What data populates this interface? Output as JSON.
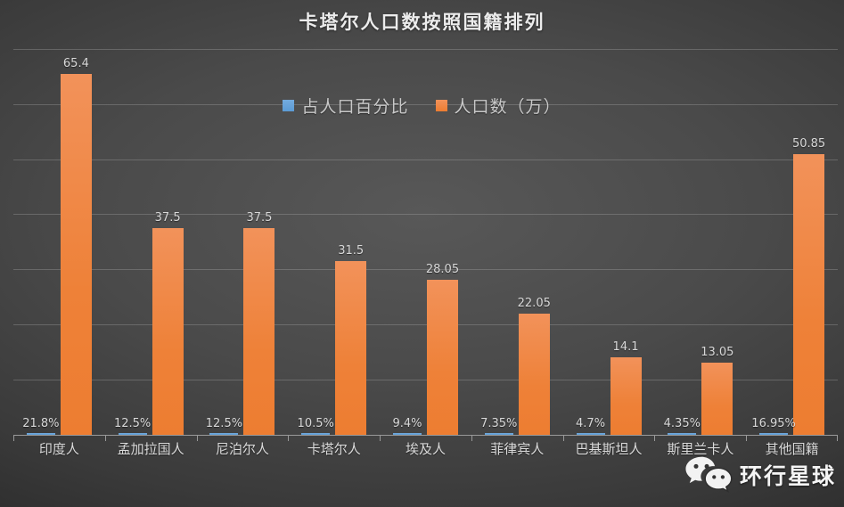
{
  "title": "卡塔尔人口数按照国籍排列",
  "legend": [
    {
      "label": "占人口百分比",
      "color_top": "#74abde",
      "color_bottom": "#5b9bd5"
    },
    {
      "label": "人口数（万）",
      "color_top": "#f2925a",
      "color_bottom": "#ed7d31"
    }
  ],
  "watermark": {
    "icon": "wechat-icon",
    "text": "环行星球"
  },
  "chart_data": {
    "type": "bar",
    "title": "卡塔尔人口数按照国籍排列",
    "categories": [
      "印度人",
      "孟加拉国人",
      "尼泊尔人",
      "卡塔尔人",
      "埃及人",
      "菲律宾人",
      "巴基斯坦人",
      "斯里兰卡人",
      "其他国籍"
    ],
    "series": [
      {
        "name": "占人口百分比",
        "color": "#5b9bd5",
        "values": [
          0.218,
          0.125,
          0.125,
          0.105,
          0.094,
          0.0735,
          0.047,
          0.0435,
          0.1695
        ],
        "data_labels": [
          "21.8%",
          "12.5%",
          "12.5%",
          "10.5%",
          "9.4%",
          "7.35%",
          "4.7%",
          "4.35%",
          "16.95%"
        ]
      },
      {
        "name": "人口数（万）",
        "color": "#ed7d31",
        "values": [
          65.4,
          37.5,
          37.5,
          31.5,
          28.05,
          22.05,
          14.1,
          13.05,
          50.85
        ],
        "data_labels": [
          "65.4",
          "37.5",
          "37.5",
          "31.5",
          "28.05",
          "22.05",
          "14.1",
          "13.05",
          "50.85"
        ]
      }
    ],
    "xlabel": "",
    "ylabel": "",
    "ylim": [
      0,
      70
    ],
    "gridline_interval": 10,
    "grid": true,
    "y_axis_labels_visible": false,
    "legend_position": "top-center",
    "background": "dark-gray-radial"
  }
}
